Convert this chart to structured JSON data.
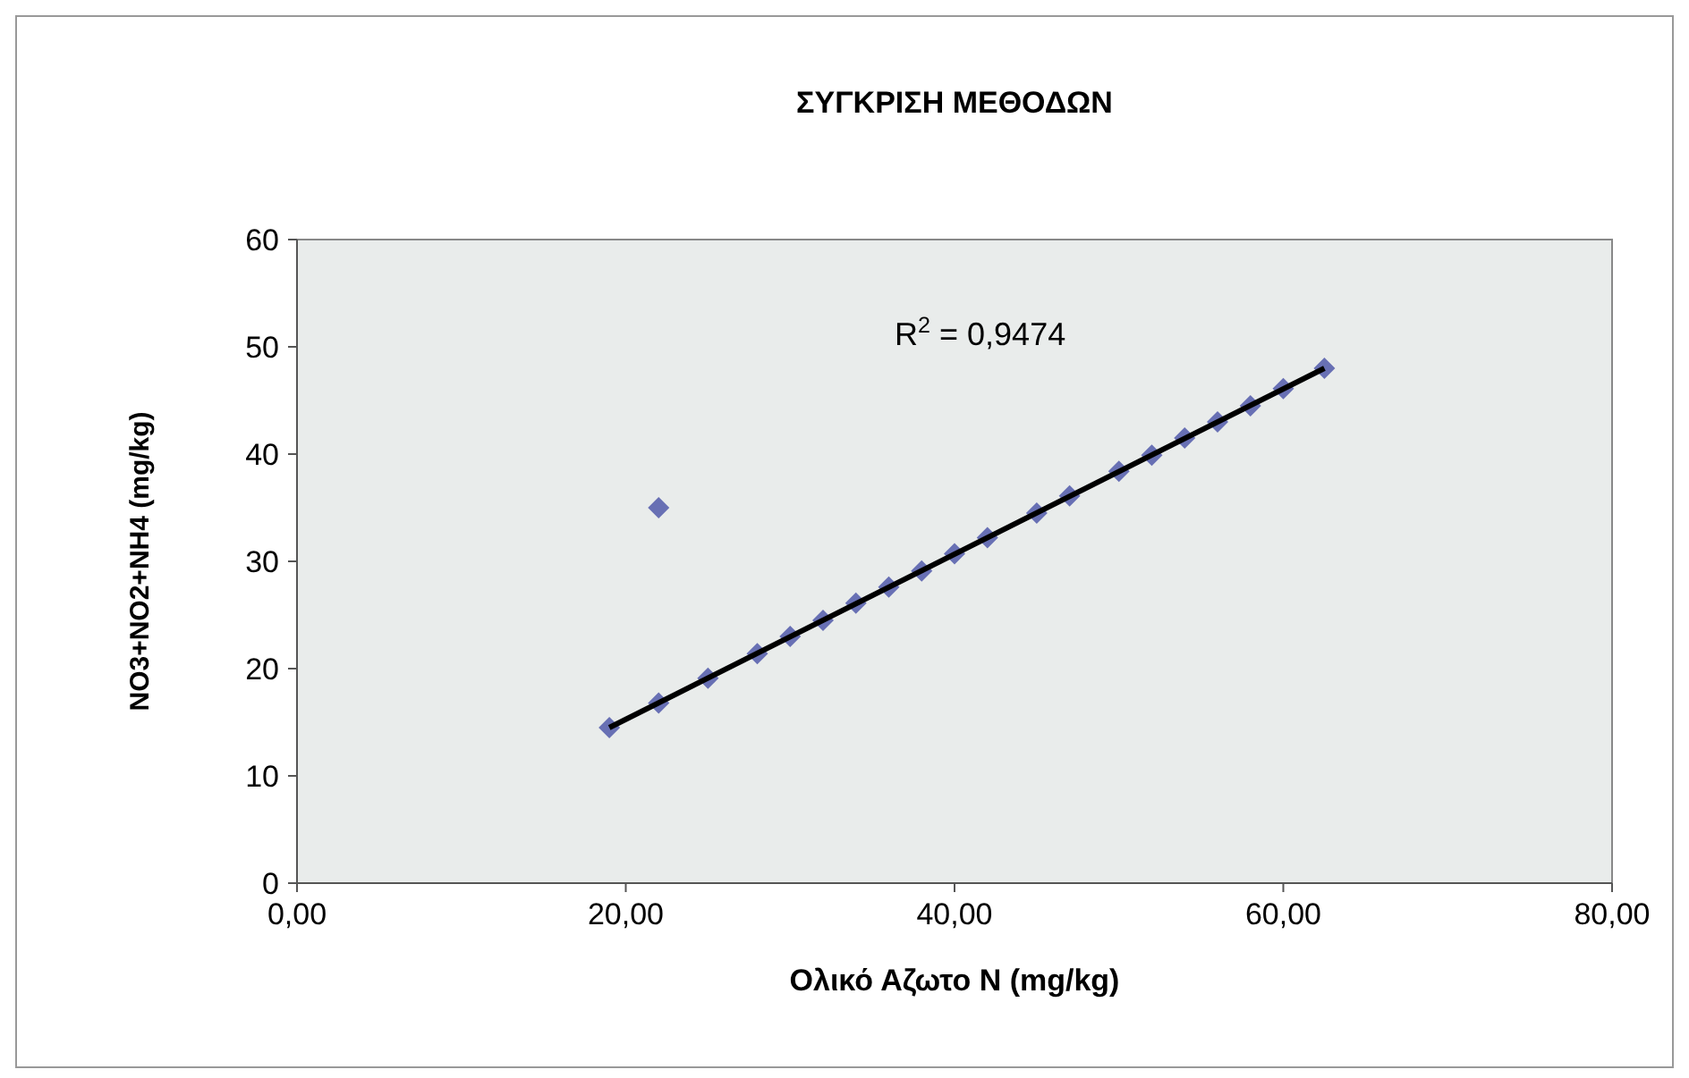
{
  "chart_data": {
    "type": "scatter",
    "title": "ΣΥΓΚΡΙΣΗ ΜΕΘΟΔΩΝ",
    "xlabel": "Ολικό Αζωτο Ν (mg/kg)",
    "ylabel": "NO3+NO2+NH4 (mg/kg)",
    "annotations": [
      "R$^{2}$ = 0,9474"
    ],
    "xlim": [
      0,
      80
    ],
    "xticks": [
      {
        "value": 0,
        "label": "0,00"
      },
      {
        "value": 20,
        "label": "20,00"
      },
      {
        "value": 40,
        "label": "40,00"
      },
      {
        "value": 60,
        "label": "60,00"
      },
      {
        "value": 80,
        "label": "80,00"
      }
    ],
    "ylim": [
      0,
      60
    ],
    "yticks": [
      0,
      10,
      20,
      30,
      40,
      50,
      60
    ],
    "grid": false,
    "marker": "diamond",
    "series": [
      {
        "color": "#6870b4",
        "x": [
          19,
          22,
          22,
          25,
          28,
          30,
          32,
          34,
          36,
          38,
          40,
          42,
          45,
          47,
          50,
          52,
          54,
          56,
          58,
          60,
          62.5
        ],
        "values": [
          14.5,
          35,
          16.8,
          19.1,
          21.4,
          23.0,
          24.5,
          26.1,
          27.6,
          29.1,
          30.7,
          32.2,
          34.5,
          36.1,
          38.4,
          39.9,
          41.5,
          43.0,
          44.5,
          46.1,
          48
        ]
      },
      {
        "type": "line",
        "color": "#000000",
        "line_style": "solid",
        "marker": "none",
        "x": [
          19,
          62.5
        ],
        "values": [
          14.5,
          48
        ]
      }
    ]
  }
}
